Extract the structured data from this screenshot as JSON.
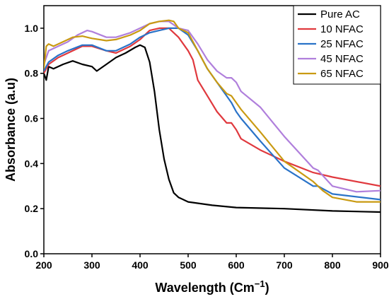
{
  "chart_data": {
    "type": "line",
    "xlabel": "Wavelength (Cm",
    "xlabel_sup": "−1",
    "xlabel_close": ")",
    "ylabel": "Absorbance (a.u)",
    "xlim": [
      200,
      900
    ],
    "ylim": [
      0.0,
      1.1
    ],
    "xticks": [
      200,
      300,
      400,
      500,
      600,
      700,
      800,
      900
    ],
    "xtick_labels": [
      "200",
      "300",
      "400",
      "500",
      "600",
      "700",
      "800",
      "900"
    ],
    "yticks": [
      0.0,
      0.2,
      0.4,
      0.6,
      0.8,
      1.0
    ],
    "ytick_labels": [
      "0.0",
      "0.2",
      "0.4",
      "0.6",
      "0.8",
      "1.0"
    ],
    "grid": false,
    "legend_position": "top-right",
    "series": [
      {
        "name": "Pure AC",
        "color": "#000000",
        "x": [
          200,
          205,
          210,
          220,
          240,
          260,
          280,
          300,
          310,
          330,
          350,
          370,
          390,
          400,
          410,
          420,
          430,
          440,
          450,
          460,
          470,
          480,
          500,
          550,
          600,
          700,
          800,
          900
        ],
        "y": [
          0.8,
          0.77,
          0.83,
          0.82,
          0.84,
          0.855,
          0.84,
          0.83,
          0.81,
          0.84,
          0.87,
          0.89,
          0.915,
          0.925,
          0.915,
          0.85,
          0.72,
          0.55,
          0.42,
          0.33,
          0.27,
          0.25,
          0.23,
          0.215,
          0.205,
          0.2,
          0.19,
          0.185
        ]
      },
      {
        "name": "10 NFAC",
        "color": "#e0393e",
        "x": [
          200,
          210,
          230,
          250,
          280,
          300,
          330,
          350,
          380,
          400,
          420,
          440,
          460,
          480,
          500,
          510,
          520,
          540,
          560,
          580,
          590,
          600,
          610,
          650,
          700,
          760,
          800,
          900
        ],
        "y": [
          0.8,
          0.84,
          0.87,
          0.89,
          0.92,
          0.92,
          0.9,
          0.89,
          0.92,
          0.95,
          0.99,
          1.0,
          1.0,
          0.96,
          0.9,
          0.86,
          0.77,
          0.7,
          0.63,
          0.58,
          0.58,
          0.55,
          0.51,
          0.46,
          0.41,
          0.36,
          0.34,
          0.3
        ]
      },
      {
        "name": "25 NFAC",
        "color": "#2a73c8",
        "x": [
          200,
          210,
          230,
          250,
          280,
          300,
          330,
          350,
          380,
          400,
          420,
          440,
          460,
          480,
          500,
          520,
          540,
          560,
          580,
          590,
          600,
          610,
          650,
          700,
          760,
          770,
          800,
          900
        ],
        "y": [
          0.81,
          0.85,
          0.88,
          0.9,
          0.925,
          0.925,
          0.9,
          0.9,
          0.93,
          0.96,
          0.98,
          0.99,
          1.0,
          1.0,
          0.97,
          0.9,
          0.82,
          0.76,
          0.7,
          0.67,
          0.63,
          0.6,
          0.5,
          0.38,
          0.3,
          0.3,
          0.265,
          0.24
        ]
      },
      {
        "name": "45 NFAC",
        "color": "#b07fdc",
        "x": [
          200,
          210,
          230,
          250,
          270,
          290,
          300,
          330,
          350,
          380,
          400,
          420,
          440,
          460,
          480,
          500,
          520,
          540,
          560,
          580,
          590,
          600,
          610,
          650,
          700,
          760,
          770,
          800,
          850,
          900
        ],
        "y": [
          0.84,
          0.9,
          0.92,
          0.94,
          0.97,
          0.99,
          0.985,
          0.96,
          0.96,
          0.98,
          1.0,
          1.02,
          1.03,
          1.03,
          1.0,
          0.99,
          0.93,
          0.86,
          0.81,
          0.78,
          0.78,
          0.76,
          0.72,
          0.65,
          0.52,
          0.38,
          0.37,
          0.3,
          0.275,
          0.28
        ]
      },
      {
        "name": "65 NFAC",
        "color": "#c99a12",
        "x": [
          200,
          205,
          210,
          220,
          240,
          260,
          280,
          300,
          330,
          350,
          380,
          400,
          420,
          440,
          460,
          470,
          480,
          500,
          520,
          540,
          560,
          580,
          590,
          600,
          610,
          650,
          700,
          760,
          780,
          800,
          850,
          900
        ],
        "y": [
          0.82,
          0.92,
          0.93,
          0.92,
          0.94,
          0.96,
          0.965,
          0.955,
          0.945,
          0.95,
          0.97,
          0.99,
          1.02,
          1.03,
          1.035,
          1.03,
          1.0,
          0.98,
          0.9,
          0.82,
          0.76,
          0.71,
          0.7,
          0.67,
          0.64,
          0.54,
          0.41,
          0.32,
          0.28,
          0.25,
          0.23,
          0.23
        ]
      }
    ]
  }
}
